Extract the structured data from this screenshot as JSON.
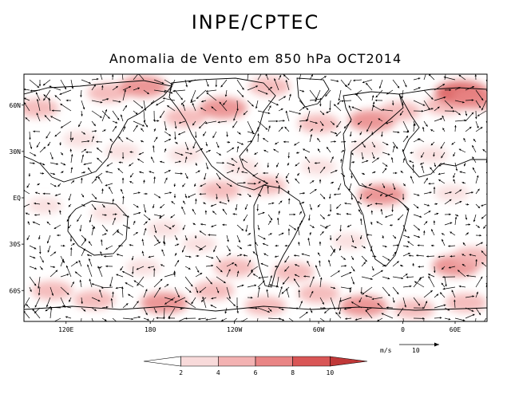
{
  "header": {
    "title": "INPE/CPTEC",
    "subtitle": "Anomalia de Vento em 850 hPa OCT2014"
  },
  "map": {
    "projection": "cylindrical equidistant",
    "lon_range": [
      90,
      420
    ],
    "lat_range": [
      -80,
      80
    ],
    "lat_ticks": [
      {
        "lat": 60,
        "label": "60N"
      },
      {
        "lat": 30,
        "label": "30N"
      },
      {
        "lat": 0,
        "label": "EQ"
      },
      {
        "lat": -30,
        "label": "30S"
      },
      {
        "lat": -60,
        "label": "60S"
      }
    ],
    "lon_ticks": [
      {
        "lon": 120,
        "label": "120E"
      },
      {
        "lon": 180,
        "label": "180"
      },
      {
        "lon": 240,
        "label": "120W"
      },
      {
        "lon": 300,
        "label": "60W"
      },
      {
        "lon": 360,
        "label": "0"
      },
      {
        "lon": 420,
        "label": "60E"
      }
    ]
  },
  "legend": {
    "units_label": "m/s",
    "reference_value": "10",
    "levels": [
      "2",
      "4",
      "6",
      "8",
      "10"
    ],
    "colors": [
      "#ffffff",
      "#f8dada",
      "#f3b2b2",
      "#e98585",
      "#d95656",
      "#c03838"
    ]
  },
  "shading_regions": [
    {
      "lon": 150,
      "lat": 68,
      "level": 2
    },
    {
      "lon": 175,
      "lat": 72,
      "level": 3
    },
    {
      "lon": 205,
      "lat": 52,
      "level": 2
    },
    {
      "lon": 232,
      "lat": 58,
      "level": 3
    },
    {
      "lon": 265,
      "lat": 72,
      "level": 2
    },
    {
      "lon": 300,
      "lat": 48,
      "level": 2
    },
    {
      "lon": 338,
      "lat": 50,
      "level": 3
    },
    {
      "lon": 358,
      "lat": 56,
      "level": 2
    },
    {
      "lon": 390,
      "lat": 60,
      "level": 2
    },
    {
      "lon": 402,
      "lat": 68,
      "level": 4
    },
    {
      "lon": 412,
      "lat": 64,
      "level": 3
    },
    {
      "lon": 100,
      "lat": 58,
      "level": 2
    },
    {
      "lon": 130,
      "lat": 38,
      "level": 1
    },
    {
      "lon": 160,
      "lat": 30,
      "level": 1
    },
    {
      "lon": 205,
      "lat": 28,
      "level": 1
    },
    {
      "lon": 245,
      "lat": 20,
      "level": 1
    },
    {
      "lon": 335,
      "lat": 32,
      "level": 1
    },
    {
      "lon": 380,
      "lat": 28,
      "level": 1
    },
    {
      "lon": 230,
      "lat": 5,
      "level": 2
    },
    {
      "lon": 262,
      "lat": 8,
      "level": 2
    },
    {
      "lon": 300,
      "lat": 20,
      "level": 1
    },
    {
      "lon": 345,
      "lat": 2,
      "level": 3
    },
    {
      "lon": 395,
      "lat": 3,
      "level": 1
    },
    {
      "lon": 105,
      "lat": -5,
      "level": 1
    },
    {
      "lon": 150,
      "lat": -10,
      "level": 1
    },
    {
      "lon": 190,
      "lat": -20,
      "level": 1
    },
    {
      "lon": 240,
      "lat": -45,
      "level": 2
    },
    {
      "lon": 282,
      "lat": -48,
      "level": 2
    },
    {
      "lon": 322,
      "lat": -28,
      "level": 1
    },
    {
      "lon": 398,
      "lat": -44,
      "level": 3
    },
    {
      "lon": 410,
      "lat": -38,
      "level": 2
    },
    {
      "lon": 110,
      "lat": -60,
      "level": 2
    },
    {
      "lon": 140,
      "lat": -66,
      "level": 2
    },
    {
      "lon": 190,
      "lat": -68,
      "level": 3
    },
    {
      "lon": 225,
      "lat": -60,
      "level": 2
    },
    {
      "lon": 262,
      "lat": -70,
      "level": 2
    },
    {
      "lon": 300,
      "lat": -62,
      "level": 2
    },
    {
      "lon": 332,
      "lat": -70,
      "level": 3
    },
    {
      "lon": 368,
      "lat": -72,
      "level": 2
    },
    {
      "lon": 405,
      "lat": -68,
      "level": 2
    },
    {
      "lon": 175,
      "lat": -45,
      "level": 1
    },
    {
      "lon": 215,
      "lat": -30,
      "level": 1
    }
  ]
}
